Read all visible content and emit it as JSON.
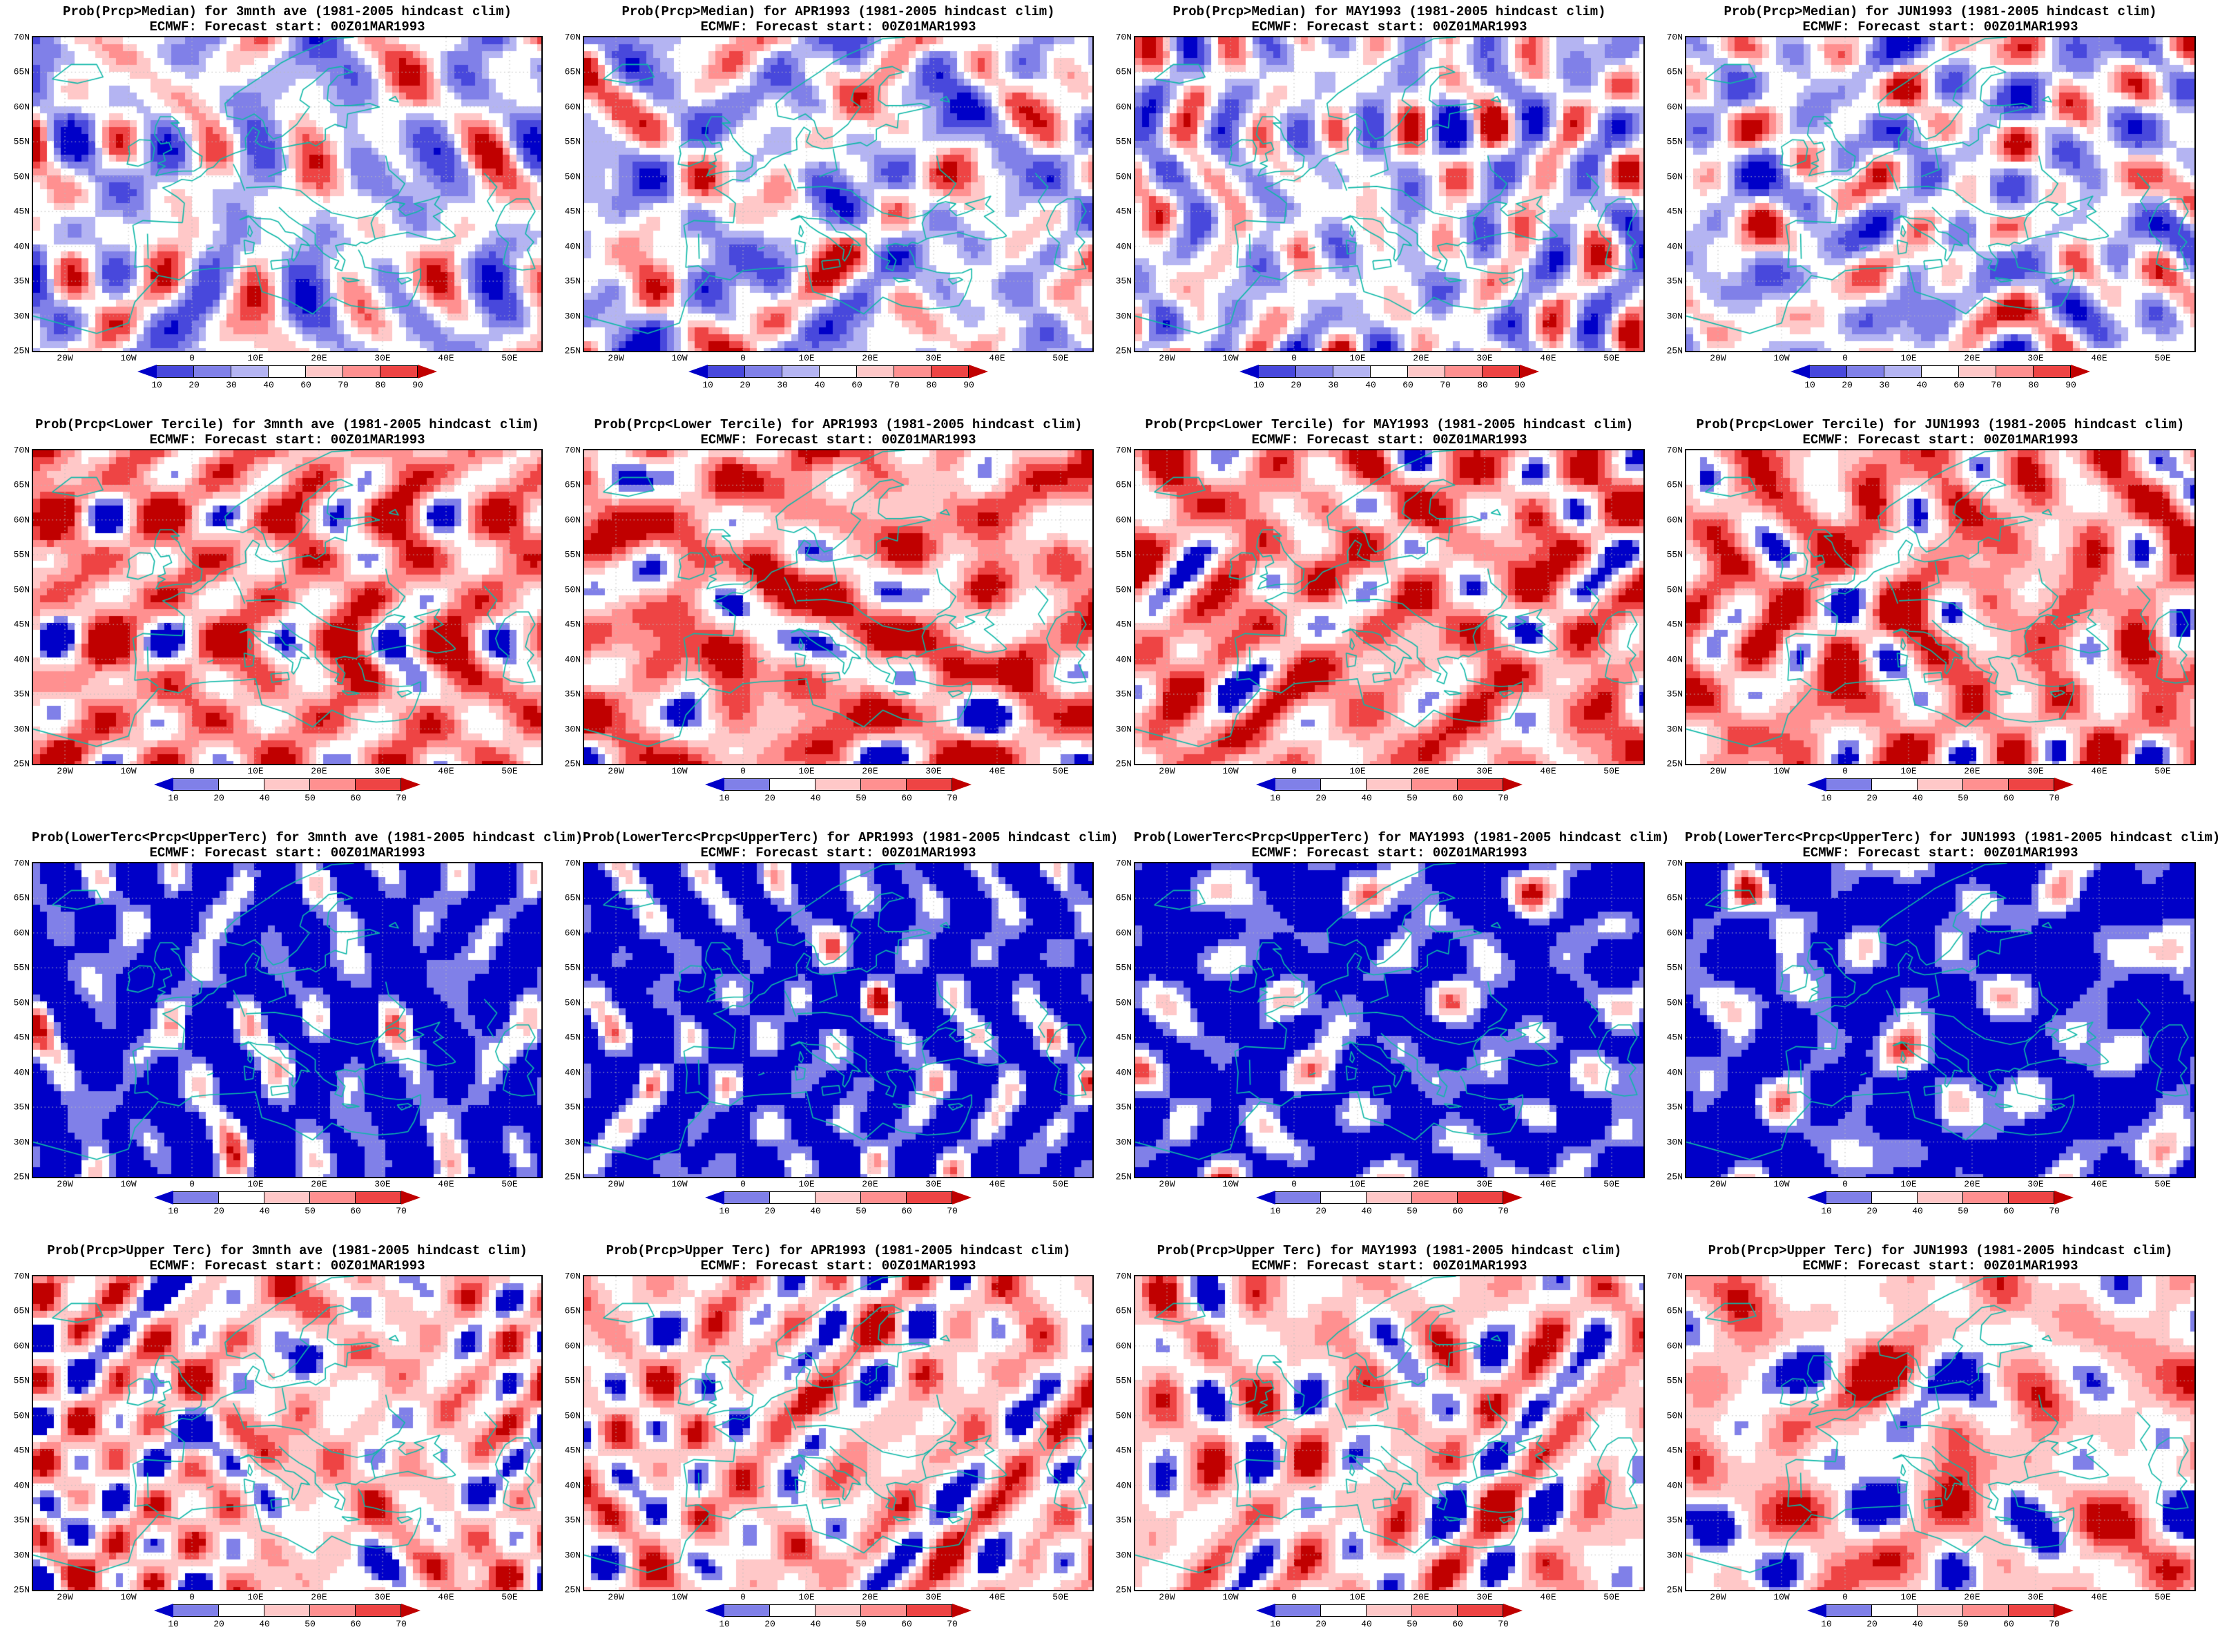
{
  "figure": {
    "subtitle": "ECMWF: Forecast start: 00Z01MAR1993",
    "rows": [
      {
        "variable": "Prob(Prcp>Median)",
        "panels": [
          {
            "title": "Prob(Prcp>Median) for 3mnth ave (1981-2005 hindcast clim)"
          },
          {
            "title": "Prob(Prcp>Median) for APR1993 (1981-2005 hindcast clim)"
          },
          {
            "title": "Prob(Prcp>Median) for MAY1993 (1981-2005 hindcast clim)"
          },
          {
            "title": "Prob(Prcp>Median) for JUN1993 (1981-2005 hindcast clim)"
          }
        ],
        "colorbar": {
          "ticks": [
            "10",
            "20",
            "30",
            "40",
            "60",
            "70",
            "80",
            "90"
          ],
          "segment_colors": [
            "#4848dc",
            "#8080e8",
            "#b4b4f2",
            "#ffffff",
            "#ffc8c8",
            "#ff9090",
            "#ee4444"
          ],
          "left_arrow_color": "#0000c8",
          "right_arrow_color": "#c00000"
        },
        "palette": [
          "#0000c8",
          "#4848dc",
          "#8080e8",
          "#b4b4f2",
          "#ffffff",
          "#ffc8c8",
          "#ff9090",
          "#ee4444",
          "#c00000"
        ],
        "coverage": [
          0.02,
          0.1,
          0.26,
          0.44,
          0.74,
          0.85,
          0.93,
          0.98,
          1.0
        ]
      },
      {
        "variable": "Prob(Prcp<Lower Tercile)",
        "panels": [
          {
            "title": "Prob(Prcp<Lower Tercile) for 3mnth ave (1981-2005 hindcast clim)"
          },
          {
            "title": "Prob(Prcp<Lower Tercile) for APR1993 (1981-2005 hindcast clim)"
          },
          {
            "title": "Prob(Prcp<Lower Tercile) for MAY1993 (1981-2005 hindcast clim)"
          },
          {
            "title": "Prob(Prcp<Lower Tercile) for JUN1993 (1981-2005 hindcast clim)"
          }
        ],
        "colorbar": {
          "ticks": [
            "10",
            "20",
            "40",
            "50",
            "60",
            "70"
          ],
          "segment_colors": [
            "#8080e8",
            "#ffffff",
            "#ffc8c8",
            "#ff9090",
            "#ee4444"
          ],
          "left_arrow_color": "#0000c8",
          "right_arrow_color": "#c00000"
        },
        "palette": [
          "#0000c8",
          "#8080e8",
          "#ffffff",
          "#ffc8c8",
          "#ff9090",
          "#ee4444",
          "#c00000"
        ],
        "coverage": [
          0.03,
          0.07,
          0.26,
          0.46,
          0.68,
          0.87,
          1.0
        ]
      },
      {
        "variable": "Prob(LowerTerc<Prcp<UpperTerc)",
        "panels": [
          {
            "title": "Prob(LowerTerc<Prcp<UpperTerc) for 3mnth ave (1981-2005 hindcast clim)"
          },
          {
            "title": "Prob(LowerTerc<Prcp<UpperTerc) for APR1993 (1981-2005 hindcast clim)"
          },
          {
            "title": "Prob(LowerTerc<Prcp<UpperTerc) for MAY1993 (1981-2005 hindcast clim)"
          },
          {
            "title": "Prob(LowerTerc<Prcp<UpperTerc) for JUN1993 (1981-2005 hindcast clim)"
          }
        ],
        "colorbar": {
          "ticks": [
            "10",
            "20",
            "40",
            "50",
            "60",
            "70"
          ],
          "segment_colors": [
            "#8080e8",
            "#ffffff",
            "#ffc8c8",
            "#ff9090",
            "#ee4444"
          ],
          "left_arrow_color": "#0000c8",
          "right_arrow_color": "#c00000"
        },
        "palette": [
          "#0000c8",
          "#8080e8",
          "#ffffff",
          "#ffc8c8",
          "#ff9090",
          "#ee4444",
          "#c00000"
        ],
        "coverage": [
          0.58,
          0.82,
          0.96,
          0.985,
          0.993,
          0.998,
          1.0
        ]
      },
      {
        "variable": "Prob(Prcp>Upper Terc)",
        "panels": [
          {
            "title": "Prob(Prcp>Upper Terc) for 3mnth ave (1981-2005 hindcast clim)"
          },
          {
            "title": "Prob(Prcp>Upper Terc) for APR1993 (1981-2005 hindcast clim)"
          },
          {
            "title": "Prob(Prcp>Upper Terc) for MAY1993 (1981-2005 hindcast clim)"
          },
          {
            "title": "Prob(Prcp>Upper Terc) for JUN1993 (1981-2005 hindcast clim)"
          }
        ],
        "colorbar": {
          "ticks": [
            "10",
            "20",
            "40",
            "50",
            "60",
            "70"
          ],
          "segment_colors": [
            "#8080e8",
            "#ffffff",
            "#ffc8c8",
            "#ff9090",
            "#ee4444"
          ],
          "left_arrow_color": "#0000c8",
          "right_arrow_color": "#c00000"
        },
        "palette": [
          "#0000c8",
          "#8080e8",
          "#ffffff",
          "#ffc8c8",
          "#ff9090",
          "#ee4444",
          "#c00000"
        ],
        "coverage": [
          0.07,
          0.14,
          0.42,
          0.7,
          0.86,
          0.95,
          1.0
        ]
      }
    ]
  },
  "map": {
    "lat_labels": [
      "70N",
      "65N",
      "60N",
      "55N",
      "50N",
      "45N",
      "40N",
      "35N",
      "30N",
      "25N"
    ],
    "lon_labels": [
      "20W",
      "10W",
      "0",
      "10E",
      "20E",
      "30E",
      "40E",
      "50E"
    ],
    "coast_color": "#0fb8a8",
    "grid_color": "#bcbcbc",
    "border_color": "#000000"
  }
}
